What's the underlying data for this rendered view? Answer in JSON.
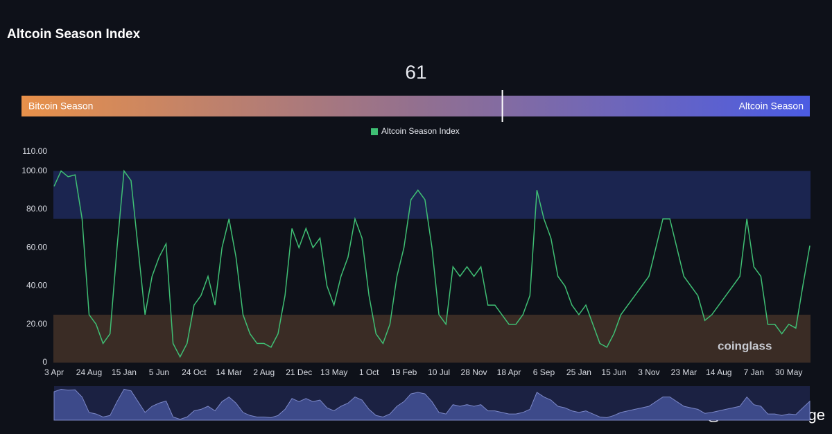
{
  "chart_data": {
    "type": "line",
    "title": "Altcoin Season Index",
    "gauge": {
      "value": 61,
      "range": [
        0,
        100
      ],
      "left_label": "Bitcoin Season",
      "right_label": "Altcoin Season"
    },
    "categories": [
      "3 Apr",
      null,
      null,
      null,
      null,
      "24 Aug",
      null,
      null,
      null,
      null,
      "15 Jan",
      null,
      null,
      null,
      null,
      "5 Jun",
      null,
      null,
      null,
      null,
      "24 Oct",
      null,
      null,
      null,
      null,
      "14 Mar",
      null,
      null,
      null,
      null,
      "2 Aug",
      null,
      null,
      null,
      null,
      "21 Dec",
      null,
      null,
      null,
      null,
      "13 May",
      null,
      null,
      null,
      null,
      "1 Oct",
      null,
      null,
      null,
      null,
      "19 Feb",
      null,
      null,
      null,
      null,
      "10 Jul",
      null,
      null,
      null,
      null,
      "28 Nov",
      null,
      null,
      null,
      null,
      "18 Apr",
      null,
      null,
      null,
      null,
      "6 Sep",
      null,
      null,
      null,
      null,
      "25 Jan",
      null,
      null,
      null,
      null,
      "15 Jun",
      null,
      null,
      null,
      null,
      "3 Nov",
      null,
      null,
      null,
      null,
      "23 Mar",
      null,
      null,
      null,
      null,
      "14 Aug",
      null,
      null,
      null,
      null,
      "7 Jan",
      null,
      null,
      null,
      null,
      "30 May",
      null,
      null,
      null
    ],
    "series": [
      {
        "name": "Altcoin Season Index",
        "color": "#3fbf74",
        "values": [
          92,
          100,
          97,
          98,
          75,
          25,
          20,
          10,
          15,
          60,
          100,
          95,
          60,
          25,
          45,
          55,
          62,
          10,
          3,
          10,
          30,
          35,
          45,
          30,
          60,
          75,
          55,
          25,
          15,
          10,
          10,
          8,
          15,
          35,
          70,
          60,
          70,
          60,
          65,
          40,
          30,
          45,
          55,
          75,
          65,
          35,
          15,
          10,
          20,
          45,
          60,
          85,
          90,
          85,
          60,
          25,
          20,
          50,
          45,
          50,
          45,
          50,
          30,
          30,
          25,
          20,
          20,
          25,
          35,
          90,
          75,
          65,
          45,
          40,
          30,
          25,
          30,
          20,
          10,
          8,
          15,
          25,
          30,
          35,
          40,
          45,
          60,
          75,
          75,
          60,
          45,
          40,
          35,
          22,
          25,
          30,
          35,
          40,
          45,
          75,
          50,
          45,
          20,
          20,
          15,
          20,
          18,
          40,
          61
        ]
      }
    ],
    "ylim": [
      0,
      110
    ],
    "yticks": [
      0,
      {
        "value": 20,
        "label": "20.00"
      },
      {
        "value": 40,
        "label": "40.00"
      },
      {
        "value": 60,
        "label": "60.00"
      },
      {
        "value": 80,
        "label": "80.00"
      },
      {
        "value": 100,
        "label": "100.00"
      },
      {
        "value": 110,
        "label": "110.00"
      }
    ],
    "grid": false,
    "bands": [
      {
        "from": 75,
        "to": 100,
        "color": "#1b2550"
      },
      {
        "from": 0,
        "to": 25,
        "color": "#3a2c25"
      }
    ],
    "watermarks": [
      "coinglass",
      "@Doctor-Strange"
    ]
  }
}
